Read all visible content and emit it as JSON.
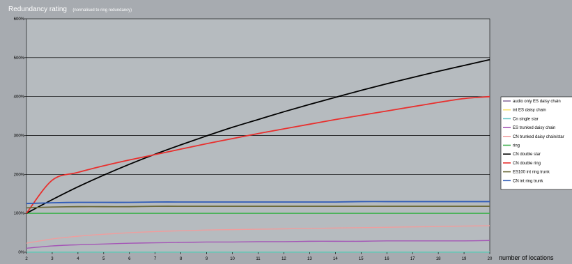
{
  "chart_data": {
    "type": "line",
    "title": "Redundancy rating",
    "subtitle": "(normalised to ring redundancy)",
    "xlabel": "number of locations",
    "ylabel": "",
    "x": [
      2,
      3,
      4,
      5,
      6,
      7,
      8,
      9,
      10,
      11,
      12,
      13,
      14,
      15,
      16,
      17,
      18,
      19,
      20
    ],
    "xlim": [
      2,
      20
    ],
    "ylim": [
      0,
      600
    ],
    "yticks": [
      "0%",
      "100%",
      "200%",
      "300%",
      "400%",
      "500%",
      "600%"
    ],
    "grid": true,
    "legend_position": "right",
    "series": [
      {
        "name": "audio only  ES daisy chain",
        "color": "#8b6f9e",
        "values": [
          0,
          0,
          0,
          0,
          0,
          0,
          0,
          0,
          0,
          0,
          0,
          0,
          0,
          0,
          0,
          0,
          0,
          0,
          0
        ]
      },
      {
        "name": "int ES daisy chain",
        "color": "#f5e06a",
        "values": [
          0,
          0,
          0,
          0,
          0,
          0,
          0,
          0,
          0,
          0,
          0,
          0,
          0,
          0,
          0,
          0,
          0,
          0,
          0
        ]
      },
      {
        "name": "Cn single star",
        "color": "#5fc4c4",
        "values": [
          0,
          0,
          0,
          0,
          0,
          0,
          0,
          0,
          0,
          0,
          0,
          0,
          0,
          0,
          0,
          0,
          0,
          0,
          0
        ]
      },
      {
        "name": "ES trunked daisy chain",
        "color": "#a455b6",
        "values": [
          10,
          16,
          19,
          21,
          23,
          24,
          25,
          26,
          26,
          27,
          27,
          28,
          28,
          28,
          29,
          29,
          29,
          29,
          30
        ]
      },
      {
        "name": "CN trunked daisy chain/star",
        "color": "#f09d9d",
        "values": [
          23,
          34,
          41,
          46,
          50,
          53,
          55,
          57,
          58,
          59,
          60,
          61,
          62,
          63,
          64,
          65,
          66,
          67,
          68
        ]
      },
      {
        "name": "ring",
        "color": "#3fb04e",
        "values": [
          100,
          100,
          100,
          100,
          100,
          100,
          100,
          100,
          100,
          100,
          100,
          100,
          100,
          100,
          100,
          100,
          100,
          100,
          100
        ]
      },
      {
        "name": "CN double star",
        "color": "#000000",
        "values": [
          100,
          135,
          168,
          198,
          226,
          252,
          276,
          299,
          321,
          341,
          361,
          380,
          398,
          416,
          433,
          449,
          465,
          480,
          495
        ]
      },
      {
        "name": "CN double ring",
        "color": "#e8302e",
        "values": [
          100,
          185,
          205,
          222,
          237,
          251,
          265,
          279,
          292,
          305,
          317,
          329,
          341,
          352,
          363,
          374,
          385,
          395,
          400
        ]
      },
      {
        "name": "ES100 int ring trunk",
        "color": "#6b6a3a",
        "values": [
          114,
          116,
          117,
          117,
          117,
          118,
          118,
          118,
          118,
          118,
          118,
          118,
          118,
          118,
          118,
          118,
          118,
          118,
          118
        ]
      },
      {
        "name": "CN int ring trunk",
        "color": "#2f5bb7",
        "values": [
          125,
          127,
          128,
          128,
          128,
          129,
          129,
          129,
          129,
          129,
          129,
          129,
          129,
          130,
          130,
          130,
          130,
          130,
          130
        ]
      }
    ]
  }
}
